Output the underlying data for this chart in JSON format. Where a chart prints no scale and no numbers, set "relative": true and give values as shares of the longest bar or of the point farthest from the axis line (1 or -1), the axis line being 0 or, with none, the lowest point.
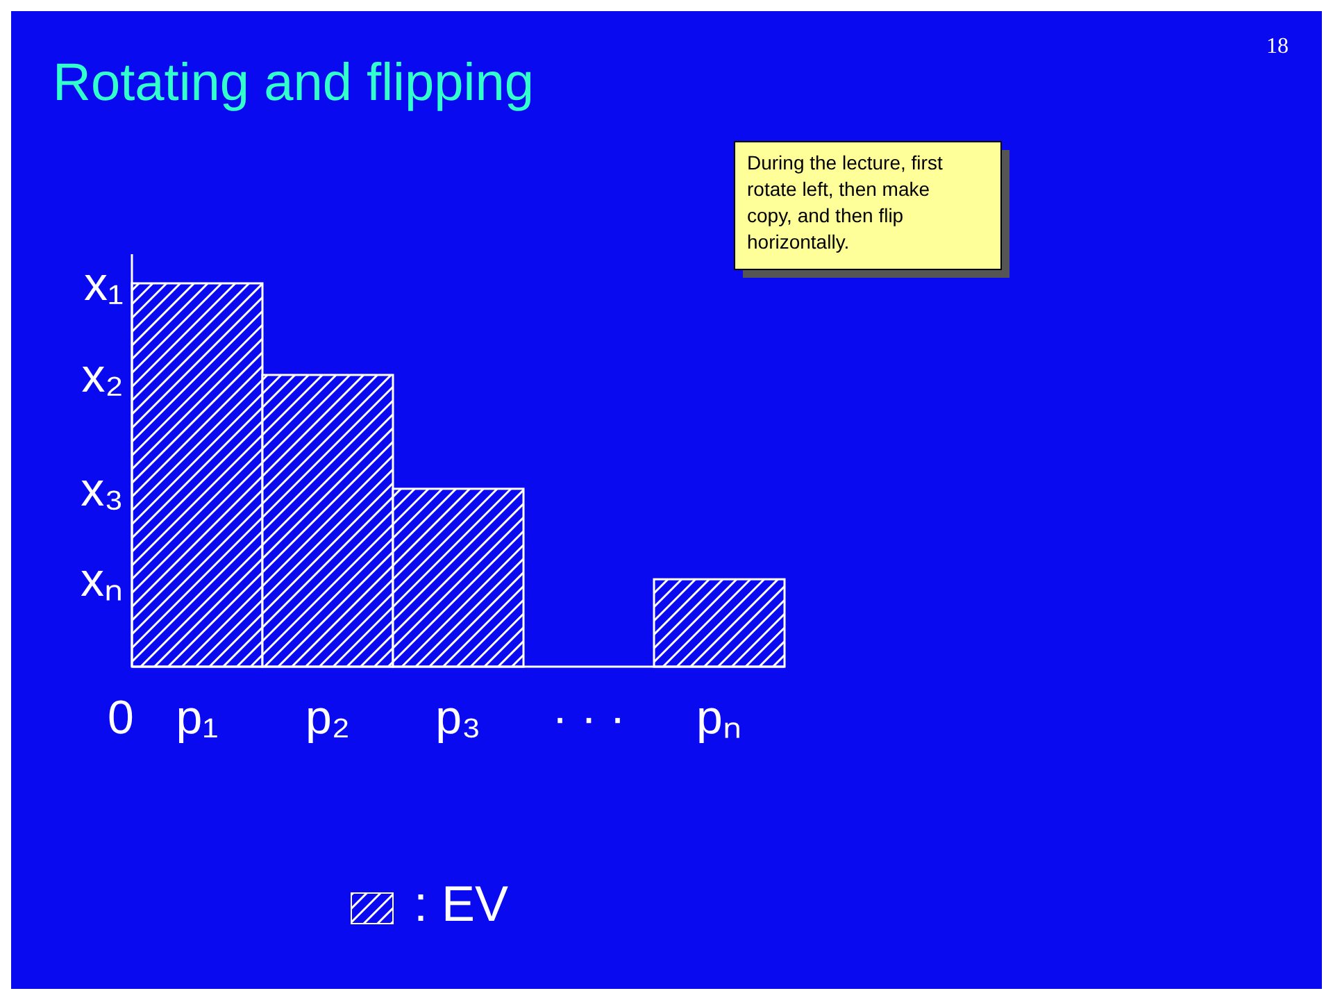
{
  "chart_data": {
    "type": "bar",
    "title": "Rotating and flipping",
    "relative": true,
    "categories": [
      "p₁",
      "p₂",
      "p₃",
      "· · ·",
      "pₙ"
    ],
    "series": [
      {
        "name": ": EV",
        "color": "#ffffff",
        "values": [
          1,
          0.761,
          0.464,
          null,
          0.228
        ]
      }
    ],
    "legend": "bottom",
    "annotations": [
      "18",
      "During the lecture, first rotate left, then make copy, and then flip horizontally.",
      "x₁",
      "x₂",
      "x₃",
      "xₙ",
      "0"
    ]
  }
}
